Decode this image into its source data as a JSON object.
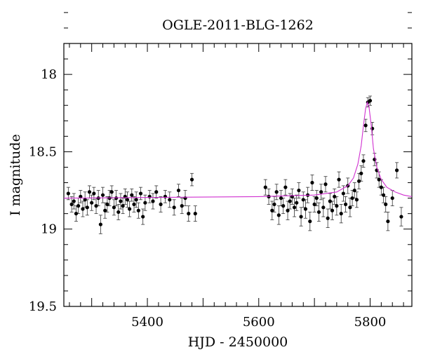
{
  "chart_data": {
    "type": "scatter",
    "title": "OGLE-2011-BLG-1262",
    "xlabel": "HJD - 2450000",
    "ylabel": "I magnitude",
    "xlim": [
      5250,
      5875
    ],
    "ylim": [
      19.5,
      17.8
    ],
    "y_inverted": true,
    "x_ticks": [
      5400,
      5600,
      5800
    ],
    "y_ticks": [
      18,
      18.5,
      19,
      19.5
    ],
    "grid": false,
    "colors": {
      "points": "#000000",
      "model": "#d030d0",
      "axes": "#000000"
    },
    "series": [
      {
        "type": "scatter_with_errors",
        "x": [
          5258,
          5264,
          5268,
          5272,
          5276,
          5280,
          5284,
          5288,
          5292,
          5296,
          5300,
          5304,
          5308,
          5312,
          5316,
          5320,
          5324,
          5328,
          5332,
          5336,
          5340,
          5344,
          5348,
          5352,
          5356,
          5360,
          5364,
          5368,
          5372,
          5376,
          5380,
          5384,
          5388,
          5392,
          5396,
          5404,
          5410,
          5416,
          5424,
          5432,
          5440,
          5448,
          5456,
          5462,
          5468,
          5474,
          5480,
          5486,
          5612,
          5618,
          5624,
          5628,
          5632,
          5636,
          5640,
          5644,
          5648,
          5652,
          5656,
          5660,
          5664,
          5668,
          5672,
          5676,
          5680,
          5684,
          5688,
          5692,
          5696,
          5700,
          5704,
          5708,
          5712,
          5716,
          5720,
          5724,
          5728,
          5732,
          5736,
          5740,
          5744,
          5748,
          5752,
          5756,
          5760,
          5764,
          5768,
          5772,
          5776,
          5780,
          5784,
          5788,
          5792,
          5796,
          5800,
          5804,
          5808,
          5812,
          5816,
          5820,
          5824,
          5828,
          5832,
          5840,
          5848,
          5856
        ],
        "y": [
          18.77,
          18.84,
          18.82,
          18.9,
          18.85,
          18.79,
          18.87,
          18.81,
          18.86,
          18.76,
          18.83,
          18.77,
          18.85,
          18.8,
          18.97,
          18.78,
          18.88,
          18.84,
          18.8,
          18.76,
          18.86,
          18.8,
          18.89,
          18.82,
          18.85,
          18.79,
          18.81,
          18.87,
          18.78,
          18.84,
          18.81,
          18.88,
          18.77,
          18.92,
          18.83,
          18.79,
          18.82,
          18.76,
          18.84,
          18.79,
          18.81,
          18.86,
          18.75,
          18.85,
          18.8,
          18.9,
          18.68,
          18.9,
          18.73,
          18.79,
          18.88,
          18.84,
          18.76,
          18.91,
          18.8,
          18.85,
          18.73,
          18.88,
          18.82,
          18.79,
          18.86,
          18.83,
          18.75,
          18.92,
          18.81,
          18.87,
          18.78,
          18.95,
          18.7,
          18.84,
          18.8,
          18.89,
          18.76,
          18.86,
          18.71,
          18.93,
          18.82,
          18.88,
          18.79,
          18.85,
          18.68,
          18.9,
          18.77,
          18.84,
          18.72,
          18.86,
          18.8,
          18.75,
          18.81,
          18.69,
          18.64,
          18.56,
          18.33,
          18.18,
          18.17,
          18.35,
          18.55,
          18.62,
          18.68,
          18.73,
          18.78,
          18.84,
          18.95,
          18.8,
          18.62,
          18.92
        ],
        "yerr": [
          0.04,
          0.05,
          0.05,
          0.05,
          0.05,
          0.04,
          0.05,
          0.05,
          0.05,
          0.04,
          0.05,
          0.04,
          0.05,
          0.05,
          0.06,
          0.05,
          0.05,
          0.05,
          0.05,
          0.04,
          0.05,
          0.05,
          0.05,
          0.05,
          0.05,
          0.05,
          0.05,
          0.05,
          0.04,
          0.05,
          0.05,
          0.05,
          0.04,
          0.05,
          0.05,
          0.04,
          0.05,
          0.04,
          0.05,
          0.04,
          0.05,
          0.05,
          0.04,
          0.05,
          0.05,
          0.05,
          0.04,
          0.05,
          0.05,
          0.05,
          0.06,
          0.05,
          0.05,
          0.06,
          0.05,
          0.05,
          0.05,
          0.06,
          0.05,
          0.05,
          0.06,
          0.05,
          0.05,
          0.06,
          0.05,
          0.06,
          0.05,
          0.06,
          0.05,
          0.05,
          0.05,
          0.06,
          0.05,
          0.06,
          0.05,
          0.06,
          0.05,
          0.06,
          0.05,
          0.06,
          0.05,
          0.06,
          0.05,
          0.05,
          0.05,
          0.06,
          0.05,
          0.05,
          0.05,
          0.05,
          0.05,
          0.04,
          0.04,
          0.03,
          0.03,
          0.04,
          0.04,
          0.05,
          0.05,
          0.05,
          0.05,
          0.05,
          0.06,
          0.05,
          0.05,
          0.06
        ]
      },
      {
        "type": "line",
        "x": [
          5250,
          5600,
          5700,
          5740,
          5760,
          5770,
          5778,
          5784,
          5788,
          5792,
          5795,
          5798,
          5802,
          5806,
          5812,
          5820,
          5830,
          5845,
          5860,
          5875
        ],
        "y": [
          18.8,
          18.79,
          18.78,
          18.76,
          18.72,
          18.67,
          18.58,
          18.46,
          18.33,
          18.22,
          18.18,
          18.21,
          18.33,
          18.48,
          18.6,
          18.68,
          18.73,
          18.76,
          18.78,
          18.79
        ]
      }
    ]
  }
}
